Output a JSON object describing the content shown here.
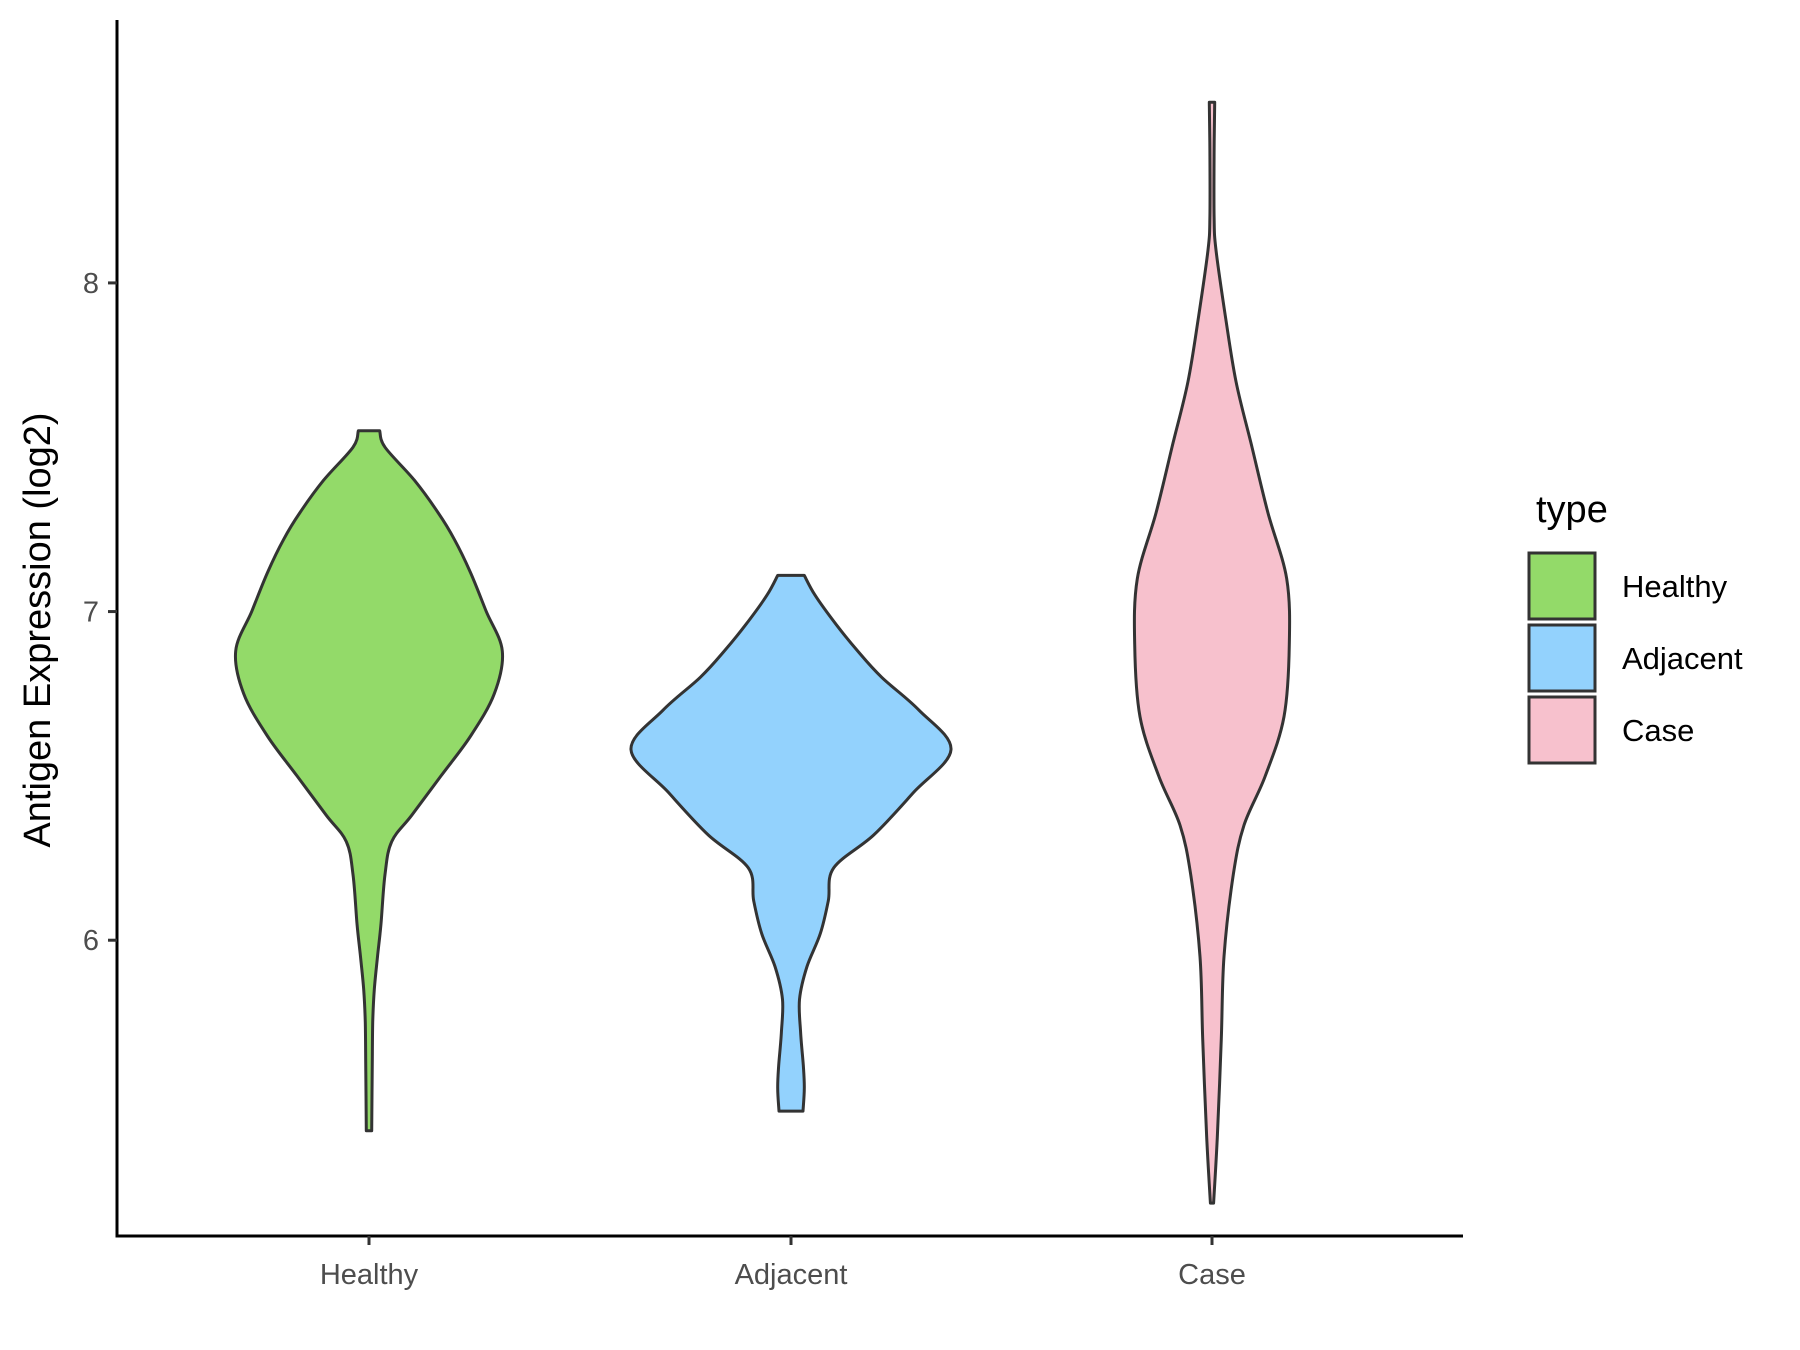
{
  "chart_data": {
    "type": "violin",
    "title": "",
    "xlabel": "",
    "ylabel": "Antigen Expression (log2)",
    "categories": [
      "Healthy",
      "Adjacent",
      "Case"
    ],
    "yticks": [
      6,
      7,
      8
    ],
    "ylim": [
      5.1,
      8.8
    ],
    "colors": {
      "Healthy": "#93DA69",
      "Adjacent": "#93D2FD",
      "Case": "#F7C1CD"
    },
    "outline_color": "#333333",
    "legend": {
      "title": "type",
      "position": "right",
      "entries": [
        "Healthy",
        "Adjacent",
        "Case"
      ]
    },
    "series": [
      {
        "name": "Healthy",
        "min": 5.42,
        "max": 7.55,
        "density": [
          [
            5.42,
            0.01
          ],
          [
            5.6,
            0.012
          ],
          [
            5.75,
            0.014
          ],
          [
            5.85,
            0.02
          ],
          [
            5.95,
            0.032
          ],
          [
            6.05,
            0.045
          ],
          [
            6.2,
            0.06
          ],
          [
            6.3,
            0.085
          ],
          [
            6.38,
            0.16
          ],
          [
            6.5,
            0.27
          ],
          [
            6.62,
            0.38
          ],
          [
            6.75,
            0.47
          ],
          [
            6.88,
            0.5
          ],
          [
            7.0,
            0.44
          ],
          [
            7.12,
            0.38
          ],
          [
            7.22,
            0.32
          ],
          [
            7.3,
            0.26
          ],
          [
            7.4,
            0.17
          ],
          [
            7.5,
            0.06
          ],
          [
            7.55,
            0.04
          ]
        ]
      },
      {
        "name": "Adjacent",
        "min": 5.48,
        "max": 7.11,
        "density": [
          [
            5.48,
            0.045
          ],
          [
            5.55,
            0.05
          ],
          [
            5.62,
            0.046
          ],
          [
            5.72,
            0.036
          ],
          [
            5.82,
            0.032
          ],
          [
            5.92,
            0.06
          ],
          [
            6.02,
            0.11
          ],
          [
            6.12,
            0.14
          ],
          [
            6.22,
            0.16
          ],
          [
            6.32,
            0.31
          ],
          [
            6.45,
            0.46
          ],
          [
            6.58,
            0.6
          ],
          [
            6.7,
            0.48
          ],
          [
            6.8,
            0.34
          ],
          [
            6.88,
            0.25
          ],
          [
            6.96,
            0.17
          ],
          [
            7.05,
            0.09
          ],
          [
            7.11,
            0.05
          ]
        ]
      },
      {
        "name": "Case",
        "min": 5.2,
        "max": 8.55,
        "density": [
          [
            5.2,
            0.006
          ],
          [
            5.4,
            0.02
          ],
          [
            5.7,
            0.035
          ],
          [
            5.95,
            0.045
          ],
          [
            6.2,
            0.08
          ],
          [
            6.35,
            0.12
          ],
          [
            6.5,
            0.2
          ],
          [
            6.68,
            0.27
          ],
          [
            6.9,
            0.29
          ],
          [
            7.1,
            0.28
          ],
          [
            7.3,
            0.21
          ],
          [
            7.5,
            0.15
          ],
          [
            7.7,
            0.09
          ],
          [
            7.9,
            0.05
          ],
          [
            8.1,
            0.015
          ],
          [
            8.2,
            0.008
          ],
          [
            8.4,
            0.008
          ],
          [
            8.55,
            0.01
          ]
        ]
      }
    ]
  }
}
